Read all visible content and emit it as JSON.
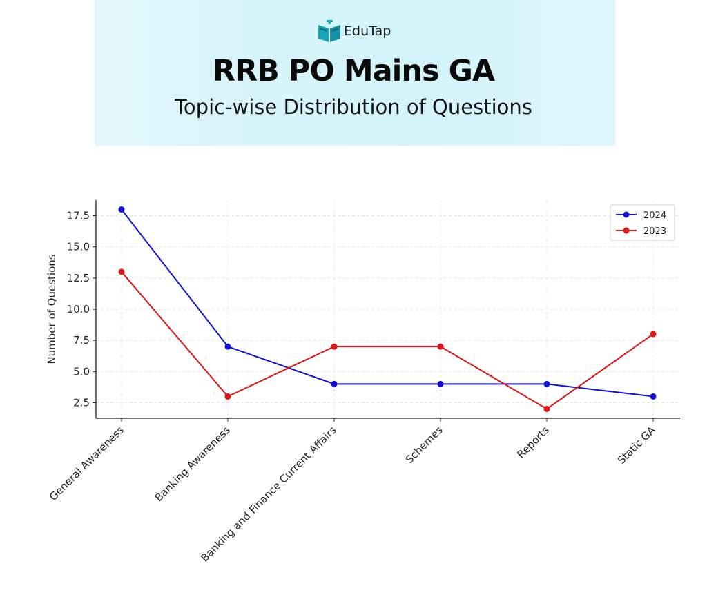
{
  "header": {
    "logo_text": "EduTap",
    "title": "RRB PO Mains GA",
    "subtitle": "Topic-wise Distribution of Questions"
  },
  "colors": {
    "series_2024": "#1010d8",
    "series_2023": "#e01515",
    "banner": "#d8f4fb",
    "logo_teal": "#1aa8b8"
  },
  "chart_data": {
    "type": "line",
    "categories": [
      "General Awareness",
      "Banking Awareness",
      "Banking and Finance Current Affairs",
      "Schemes",
      "Reports",
      "Static GA"
    ],
    "series": [
      {
        "name": "2024",
        "values": [
          18,
          7,
          4,
          4,
          4,
          3
        ]
      },
      {
        "name": "2023",
        "values": [
          13,
          3,
          7,
          7,
          2,
          8
        ]
      }
    ],
    "xlabel": "",
    "ylabel": "Number of Questions",
    "yticks": [
      2.5,
      5.0,
      7.5,
      10.0,
      12.5,
      15.0,
      17.5
    ],
    "ylim": [
      1.25,
      18.75
    ],
    "grid": true,
    "legend_position": "top-right"
  }
}
